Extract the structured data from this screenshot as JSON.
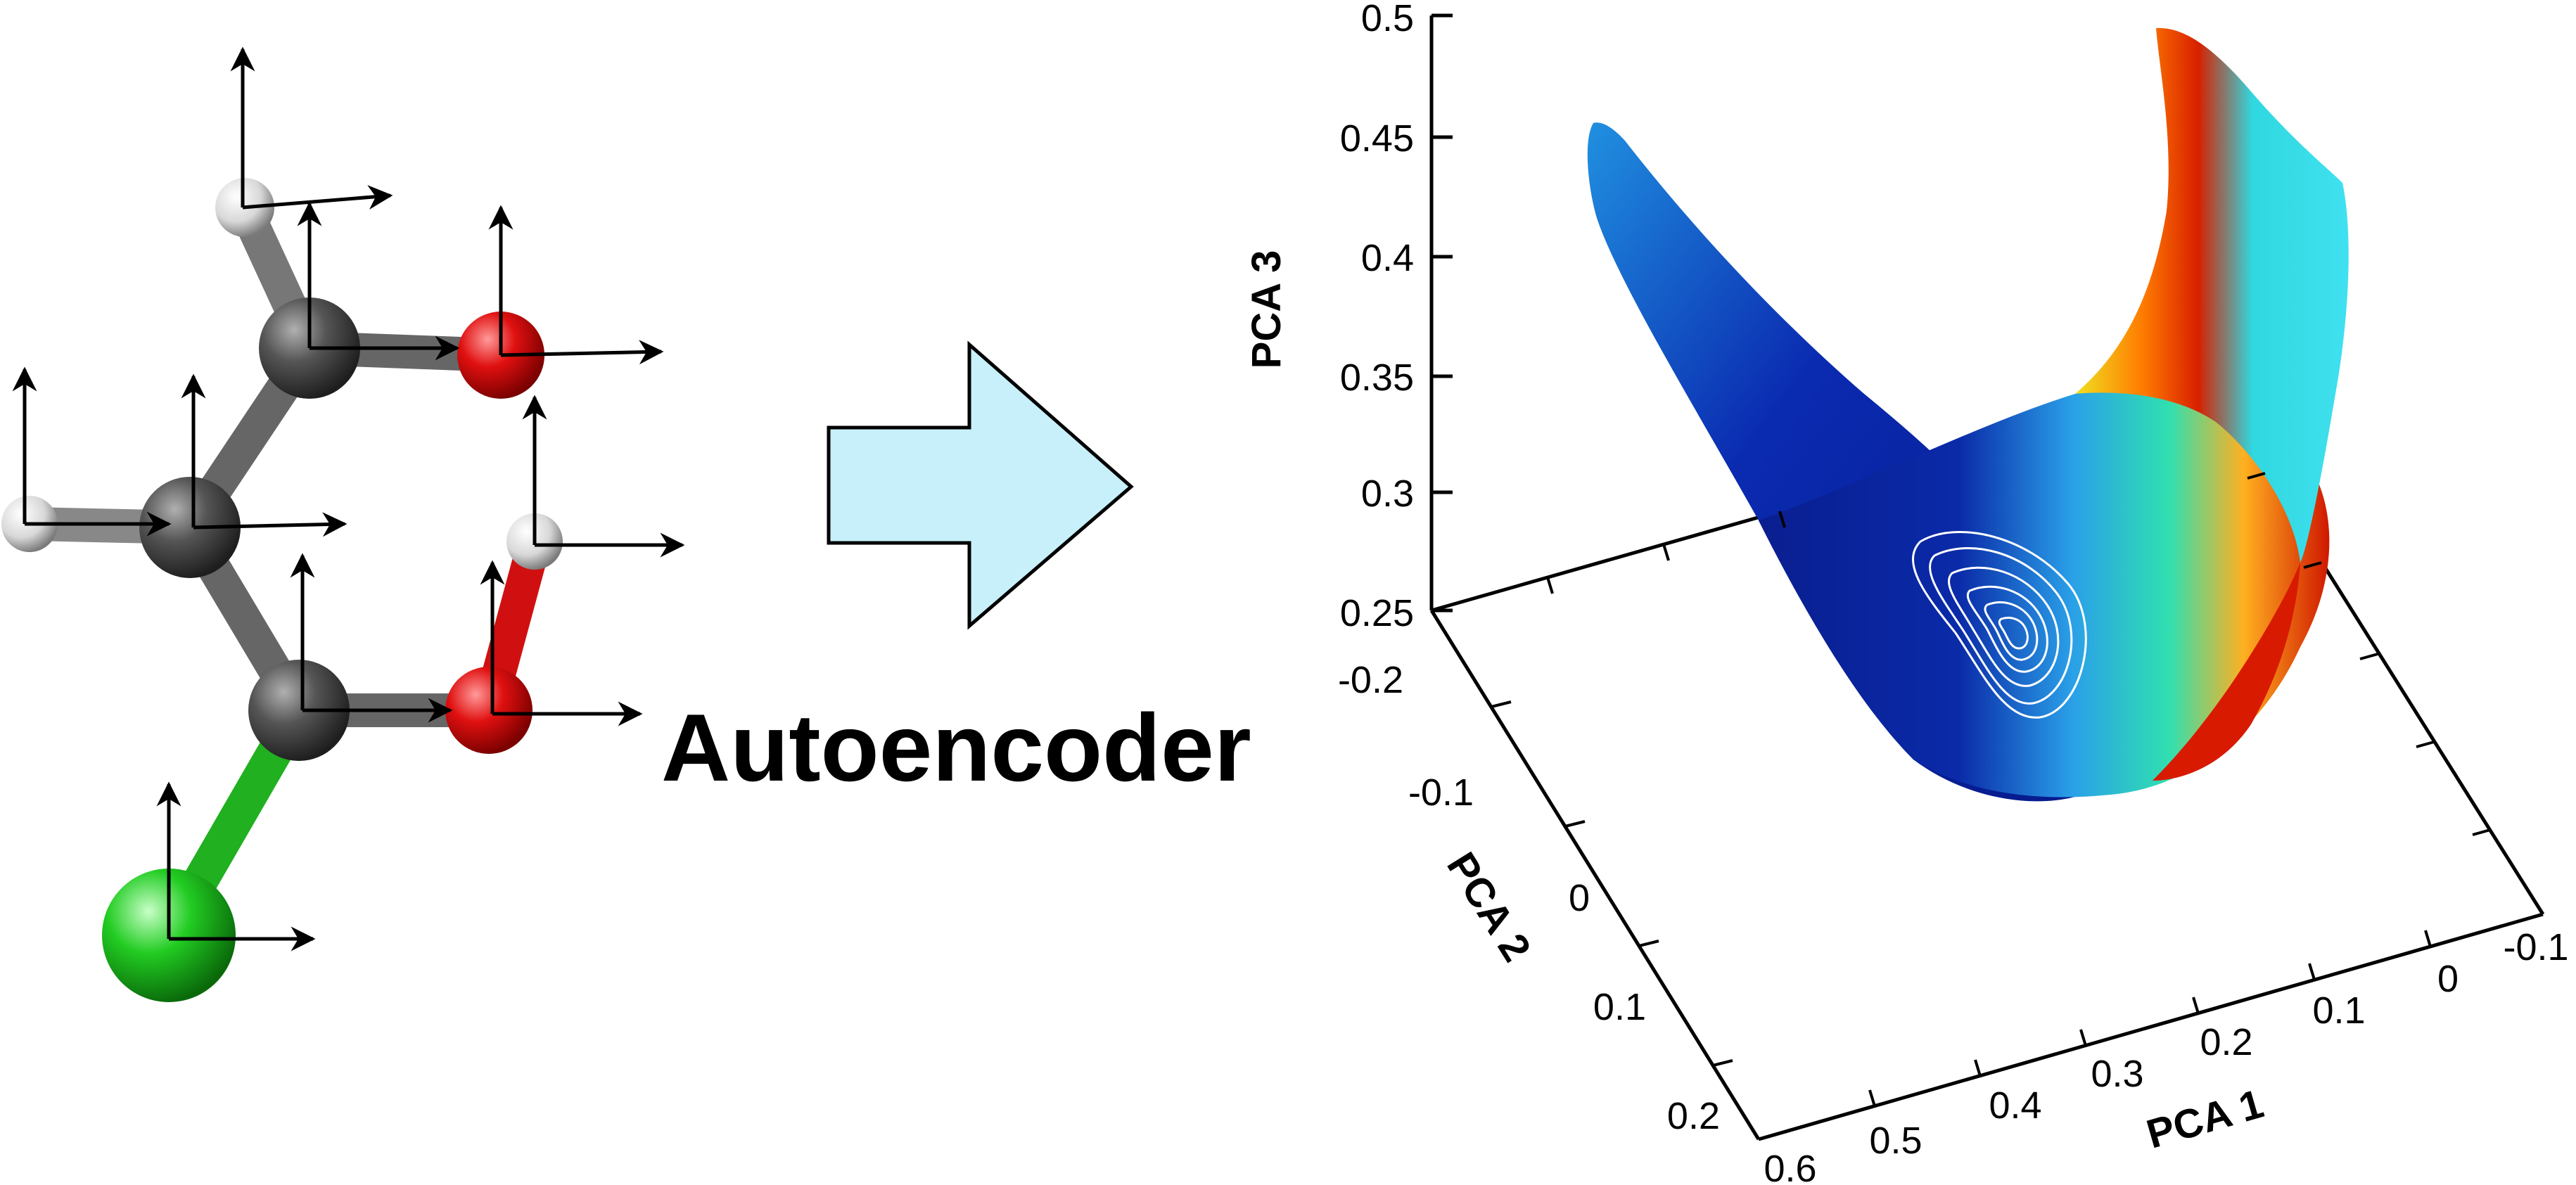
{
  "diagram": {
    "method_label": "Autoencoder",
    "colors": {
      "carbon": "#4a4a4a",
      "hydrogen": "#e8e8e8",
      "oxygen": "#e01010",
      "chlorine": "#20c020",
      "arrow_fill": "#c8f0fa",
      "contour": "#ffffff",
      "surface_low": "#0a1a8a",
      "surface_mid": "#10d0e0",
      "surface_high": "#e02000"
    },
    "molecule": {
      "atoms": [
        {
          "element": "H",
          "name": "hydrogen"
        },
        {
          "element": "C",
          "name": "carbon"
        },
        {
          "element": "O",
          "name": "oxygen"
        },
        {
          "element": "H",
          "name": "hydrogen"
        },
        {
          "element": "C",
          "name": "carbon"
        },
        {
          "element": "H",
          "name": "hydrogen"
        },
        {
          "element": "C",
          "name": "carbon"
        },
        {
          "element": "O",
          "name": "oxygen"
        },
        {
          "element": "Cl",
          "name": "chlorine"
        }
      ]
    },
    "plot": {
      "axes": {
        "pca3": {
          "title": "PCA 3",
          "ticks": [
            "0.5",
            "0.45",
            "0.4",
            "0.35",
            "0.3",
            "0.25"
          ]
        },
        "pca2": {
          "title": "PCA 2",
          "ticks": [
            "-0.2",
            "-0.1",
            "0",
            "0.1",
            "0.2"
          ]
        },
        "pca1": {
          "title": "PCA 1",
          "ticks": [
            "0.6",
            "0.5",
            "0.4",
            "0.3",
            "0.2",
            "0.1",
            "0",
            "-0.1"
          ]
        }
      }
    }
  }
}
